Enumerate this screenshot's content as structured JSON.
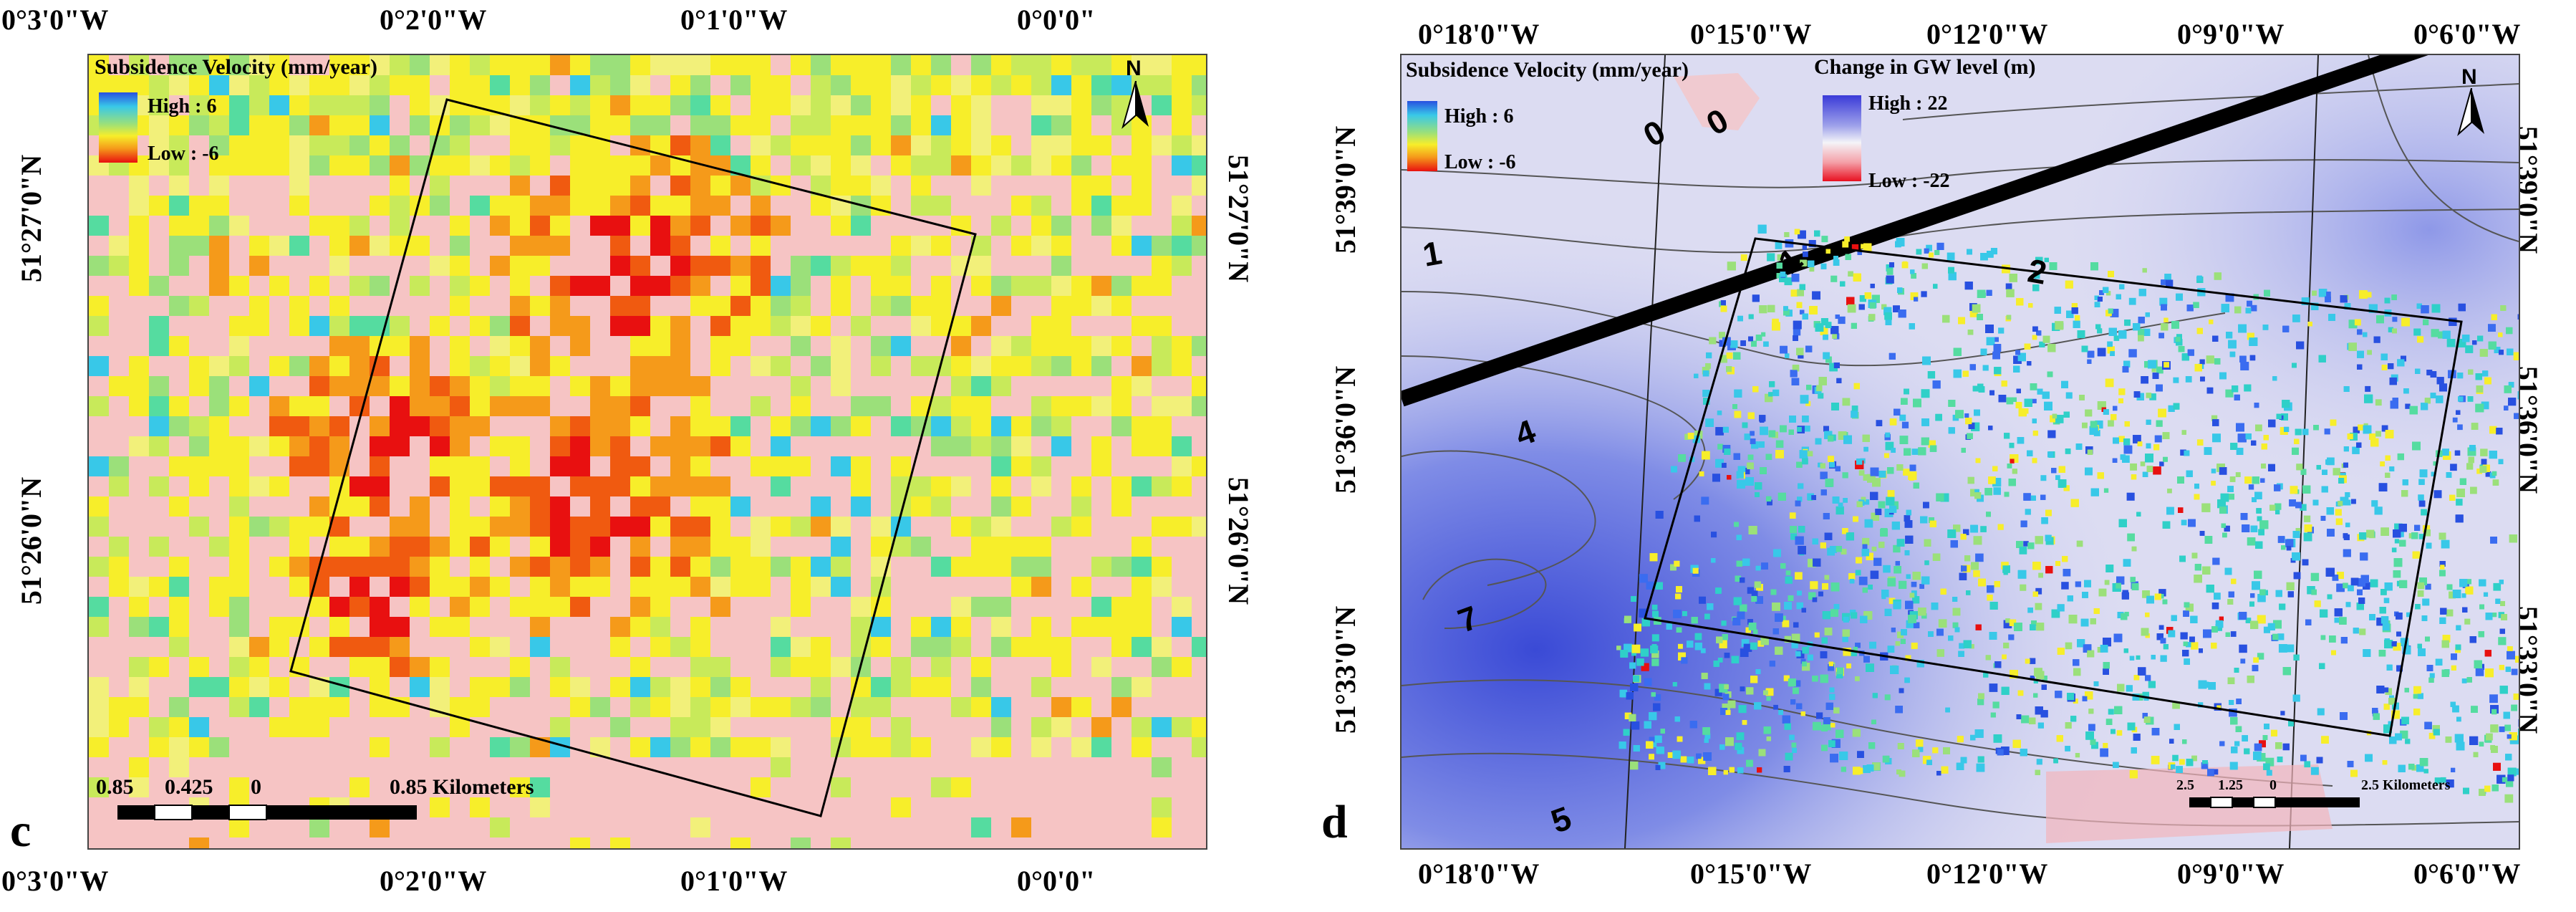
{
  "panel_c": {
    "letter": "c",
    "top_lon_labels": [
      "0°3'0\"W",
      "0°2'0\"W",
      "0°1'0\"W",
      "0°0'0\""
    ],
    "bottom_lon_labels": [
      "0°3'0\"W",
      "0°2'0\"W",
      "0°1'0\"W",
      "0°0'0\""
    ],
    "left_lat_labels": [
      "51°27'0\"N",
      "51°26'0\"N"
    ],
    "right_lat_labels": [
      "51°27'0\"N",
      "51°26'0\"N"
    ],
    "legend": {
      "title": "Subsidence Velocity (mm/year)",
      "high": "High : 6",
      "low": "Low : -6"
    },
    "north": "N",
    "scale": {
      "left": "0.85",
      "mid": "0.425",
      "zero": "0",
      "right": "0.85 Kilometers"
    }
  },
  "panel_d": {
    "letter": "d",
    "top_lon_labels": [
      "0°18'0\"W",
      "0°15'0\"W",
      "0°12'0\"W",
      "0°9'0\"W",
      "0°6'0\"W"
    ],
    "bottom_lon_labels": [
      "0°18'0\"W",
      "0°15'0\"W",
      "0°12'0\"W",
      "0°9'0\"W",
      "0°6'0\"W"
    ],
    "left_lat_labels": [
      "51°39'0\"N",
      "51°36'0\"N",
      "51°33'0\"N"
    ],
    "right_lat_labels": [
      "51°39'0\"N",
      "51°36'0\"N",
      "51°33'0\"N"
    ],
    "legend_velocity": {
      "title": "Subsidence Velocity (mm/year)",
      "high": "High : 6",
      "low": "Low : -6"
    },
    "legend_gw": {
      "title": "Change in GW level (m)",
      "high": "High : 22",
      "low": "Low : -22"
    },
    "north": "N",
    "contour_labels": [
      "0",
      "0",
      "1",
      "1",
      "2",
      "4",
      "7",
      "5"
    ],
    "scale": {
      "left": "2.5",
      "mid": "1.25",
      "zero": "0",
      "right": "2.5 Kilometers"
    }
  },
  "colors": {
    "background_c": "#f6c4c4",
    "red": "#e81010",
    "orange": "#f59a1a",
    "yellow": "#f7ee2a",
    "yellow_green": "#c8ea5a",
    "green": "#55dca0",
    "cyan": "#38c8e8",
    "blue": "#2850e0",
    "gw_blue": "#4a5ad8",
    "gw_light": "#dcdcf2"
  }
}
